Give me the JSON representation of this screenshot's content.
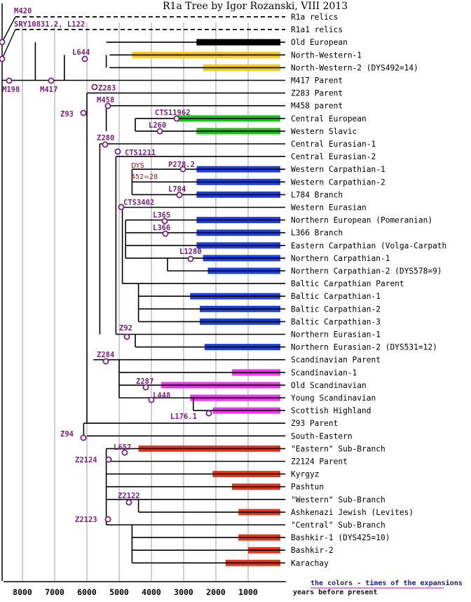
{
  "title": "R1a Tree by Igor Rozanski, VIII 2013",
  "axis": {
    "ticks": [
      "8000",
      "7000",
      "6000",
      "5000",
      "4000",
      "3000",
      "2000",
      "1000"
    ],
    "caption": "years before present"
  },
  "legend_note": "the colors - times of the expansions",
  "dys_note": [
    "DYS",
    "452=28"
  ],
  "colors": {
    "black": "#000000",
    "yellow": "#f5c518",
    "green": "#1fbf1f",
    "blue": "#1c3fe0",
    "magenta": "#ee33ee",
    "red": "#e0361a",
    "mutation": "#7a1f7a",
    "grid": "#9999cc"
  },
  "mutations": [
    "M420",
    "SRY10831.2, L122",
    "L644",
    "M198",
    "M417",
    "Z283",
    "M458",
    "Z93",
    "CTS11962",
    "L260",
    "Z280",
    "CTS1211",
    "P278.2",
    "L784",
    "CTS3402",
    "L365",
    "L366",
    "L1280",
    "Z92",
    "Z284",
    "Z287",
    "L448",
    "L176.1",
    "Z94",
    "L657",
    "Z2124",
    "Z2122",
    "Z2123"
  ],
  "branches": [
    {
      "label": "R1a relics"
    },
    {
      "label": "R1a1 relics"
    },
    {
      "label": "Old European",
      "color": "black",
      "from": 2600,
      "to": 0
    },
    {
      "label": "North-Western-1",
      "color": "yellow",
      "from": 4600,
      "to": 0
    },
    {
      "label": "North-Western-2 (DYS492=14)",
      "color": "yellow",
      "from": 2400,
      "to": 0
    },
    {
      "label": "M417 Parent"
    },
    {
      "label": "Z283 Parent"
    },
    {
      "label": "M458 parent"
    },
    {
      "label": "Central European",
      "color": "green",
      "from": 3200,
      "to": 0
    },
    {
      "label": "Western Slavic",
      "color": "green",
      "from": 2600,
      "to": 0
    },
    {
      "label": "Central Eurasian-1"
    },
    {
      "label": "Central Eurasian-2"
    },
    {
      "label": "Western Carpathian-1",
      "color": "blue",
      "from": 2600,
      "to": 0
    },
    {
      "label": "Western Carpathian-2",
      "color": "blue",
      "from": 2600,
      "to": 0
    },
    {
      "label": "L784 Branch",
      "color": "blue",
      "from": 2600,
      "to": 0
    },
    {
      "label": "Western Eurasian"
    },
    {
      "label": "Northern European (Pomeranian)",
      "color": "blue",
      "from": 2600,
      "to": 0
    },
    {
      "label": "L366 Branch",
      "color": "blue",
      "from": 2600,
      "to": 0
    },
    {
      "label": "Eastern Carpathian (Volga-Carpath",
      "color": "blue",
      "from": 2600,
      "to": 0
    },
    {
      "label": "Northern Carpathian-1",
      "color": "blue",
      "from": 2400,
      "to": 0
    },
    {
      "label": "Northern Carpathian-2 (DYS578=9)",
      "color": "blue",
      "from": 2250,
      "to": 0
    },
    {
      "label": "Baltic Carpathian Parent"
    },
    {
      "label": "Baltic Carpathian-1",
      "color": "blue",
      "from": 2800,
      "to": 0
    },
    {
      "label": "Baltic Carpathian-2",
      "color": "blue",
      "from": 2500,
      "to": 0
    },
    {
      "label": "Baltic Carpathian-3",
      "color": "blue",
      "from": 2500,
      "to": 0
    },
    {
      "label": "Northern Eurasian-1"
    },
    {
      "label": "Northern Eurasian-2 (DYS531=12)",
      "color": "blue",
      "from": 2350,
      "to": 0
    },
    {
      "label": "Scandinavian Parent"
    },
    {
      "label": "Scandinavian-1",
      "color": "magenta",
      "from": 1500,
      "to": 0
    },
    {
      "label": "Old Scandinavian",
      "color": "magenta",
      "from": 3700,
      "to": 0
    },
    {
      "label": "Young Scandinavian",
      "color": "magenta",
      "from": 2800,
      "to": 0
    },
    {
      "label": "Scottish Highland",
      "color": "magenta",
      "from": 2100,
      "to": 0
    },
    {
      "label": "Z93 Parent"
    },
    {
      "label": "South-Eastern"
    },
    {
      "label": "\"Eastern\" Sub-Branch",
      "color": "red",
      "from": 4400,
      "to": 0
    },
    {
      "label": "Z2124 Parent"
    },
    {
      "label": "Kyrgyz",
      "color": "red",
      "from": 2100,
      "to": 0
    },
    {
      "label": "Pashtun",
      "color": "red",
      "from": 1500,
      "to": 0
    },
    {
      "label": "\"Western\" Sub-Branch"
    },
    {
      "label": "Ashkenazi Jewish (Levites)",
      "color": "red",
      "from": 1300,
      "to": 0
    },
    {
      "label": "\"Central\" Sub-Branch"
    },
    {
      "label": "Bashkir-1 (DYS425=10)",
      "color": "red",
      "from": 1300,
      "to": 0
    },
    {
      "label": "Bashkir-2",
      "color": "red",
      "from": 1000,
      "to": 0
    },
    {
      "label": "Karachay",
      "color": "red",
      "from": 1700,
      "to": 0
    }
  ]
}
